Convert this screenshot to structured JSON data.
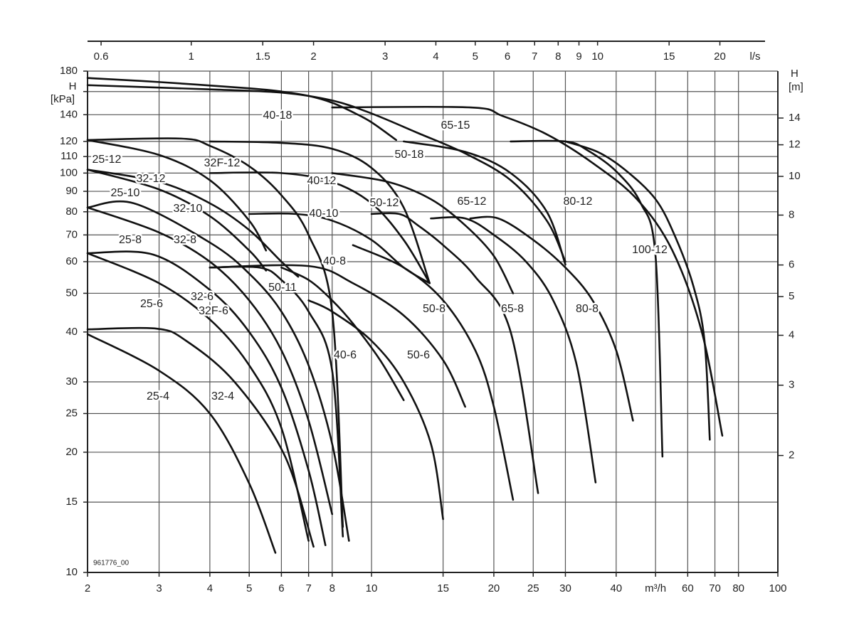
{
  "chart_data": {
    "type": "line",
    "log_x": true,
    "log_y": true,
    "grid": true,
    "color": "#111111",
    "xlim": [
      2,
      100
    ],
    "xticks": [
      2,
      3,
      4,
      5,
      6,
      7,
      8,
      10,
      15,
      20,
      25,
      30,
      40,
      {
        "value": 50,
        "label": "m³/h"
      },
      60,
      70,
      80,
      100
    ],
    "ylim": [
      10,
      180
    ],
    "yticks": [
      10,
      15,
      20,
      25,
      30,
      40,
      50,
      60,
      70,
      80,
      90,
      100,
      110,
      120,
      140,
      {
        "value": 160,
        "label": null
      },
      180
    ],
    "y_label": "H",
    "y_unit": "[kPa]",
    "x2lim": [
      0.5556,
      27.78
    ],
    "x2ticks": [
      0.6,
      1,
      1.5,
      2,
      3,
      4,
      5,
      6,
      7,
      8,
      9,
      10,
      15,
      20
    ],
    "x2_unit": "l/s",
    "y2lim": [
      1.019,
      18.35
    ],
    "y2ticks": [
      2,
      3,
      4,
      5,
      6,
      8,
      10,
      12,
      14
    ],
    "y2_label": "H",
    "y2_unit": "[m]",
    "annotation": "961776_00",
    "series": [
      {
        "name": "25-4",
        "x": [
          2,
          3,
          4,
          5,
          5.8
        ],
        "values": [
          39.5,
          32,
          25,
          16.7,
          11.2
        ]
      },
      {
        "name": "32-4",
        "x": [
          2,
          2.95,
          3.5,
          4.6,
          6.1,
          7.2
        ],
        "values": [
          40.6,
          40.8,
          38,
          30,
          19.7,
          11.6
        ]
      },
      {
        "name": "25-6",
        "x": [
          2,
          3,
          4,
          5,
          6,
          7
        ],
        "values": [
          63,
          53,
          43,
          33,
          23,
          12
        ]
      },
      {
        "name": "32-6",
        "x": [
          2,
          2.9,
          4,
          5,
          6,
          7,
          7.7
        ],
        "values": [
          63,
          62.5,
          51,
          40,
          29,
          18,
          11.7
        ]
      },
      {
        "name": "32F-6",
        "x": [
          4,
          5.3,
          6,
          7,
          8,
          8.5
        ],
        "values": [
          58,
          58,
          54,
          45,
          32,
          12.3
        ]
      },
      {
        "name": "25-8",
        "x": [
          2,
          3,
          4,
          5,
          6,
          7,
          8
        ],
        "values": [
          82,
          71,
          60,
          48,
          36,
          24,
          14
        ]
      },
      {
        "name": "32-8",
        "x": [
          2,
          2.6,
          4,
          5,
          6,
          7,
          8,
          8.8
        ],
        "values": [
          82,
          84,
          67,
          56,
          45,
          33,
          21,
          12
        ]
      },
      {
        "name": "25-10",
        "x": [
          2,
          3,
          4,
          5,
          5.5
        ],
        "values": [
          102,
          91,
          78,
          64,
          57
        ]
      },
      {
        "name": "32-10",
        "x": [
          2,
          3,
          4,
          5,
          6,
          6.6
        ],
        "values": [
          102,
          95,
          84,
          72,
          60,
          55
        ]
      },
      {
        "name": "25-12",
        "x": [
          2,
          3,
          4,
          5,
          5.5
        ],
        "values": [
          121,
          111,
          96,
          76,
          64
        ]
      },
      {
        "name": "32-12",
        "x": [
          2,
          3.4,
          4,
          5,
          6,
          7,
          8,
          8.5
        ],
        "values": [
          121,
          122,
          117,
          104,
          88,
          70,
          45,
          13
        ]
      },
      {
        "name": "32F-12",
        "x": [
          4,
          6,
          8,
          10,
          12,
          13.9
        ],
        "values": [
          120,
          119,
          115,
          103,
          82,
          53
        ]
      },
      {
        "name": "40-18",
        "x": [
          2,
          3,
          5,
          6,
          7,
          8,
          9,
          10,
          11.5
        ],
        "values": [
          173,
          169,
          163,
          160,
          156,
          150,
          142,
          134,
          121
        ]
      },
      {
        "name": "50-18",
        "x": [
          2,
          4,
          6,
          8,
          10,
          13,
          17,
          22,
          27,
          30
        ],
        "values": [
          166,
          162,
          159,
          152,
          141,
          126,
          112,
          96,
          76,
          60
        ]
      },
      {
        "name": "65-15",
        "x": [
          8,
          17.5,
          21,
          27,
          35,
          45,
          55,
          65,
          73
        ],
        "values": [
          146,
          146,
          139,
          125,
          106,
          86,
          64,
          40,
          22
        ]
      },
      {
        "name": "40-12",
        "x": [
          4,
          6,
          8,
          10,
          12,
          13.9
        ],
        "values": [
          100,
          100,
          95,
          84,
          68,
          53
        ]
      },
      {
        "name": "40-10",
        "x": [
          5,
          6.5,
          8,
          10,
          12,
          13.9
        ],
        "values": [
          79,
          79,
          76,
          68,
          58,
          53
        ]
      },
      {
        "name": "40-8",
        "x": [
          4,
          7,
          9,
          12,
          15,
          17
        ],
        "values": [
          58,
          58.5,
          53,
          44,
          34,
          26
        ]
      },
      {
        "name": "50-11",
        "x": [
          6,
          7,
          8,
          9,
          10.5,
          12
        ],
        "values": [
          58,
          54,
          48,
          42,
          34,
          27
        ]
      },
      {
        "name": "40-6",
        "x": [
          7,
          8,
          10,
          12,
          14,
          15
        ],
        "values": [
          48,
          45,
          38,
          30,
          21,
          13.6
        ]
      },
      {
        "name": "50-12",
        "x": [
          8,
          11,
          14,
          17,
          20,
          22.3
        ],
        "values": [
          100,
          95,
          86,
          74,
          62,
          50
        ]
      },
      {
        "name": "50-8",
        "x": [
          10,
          11.7,
          13,
          15,
          18,
          22,
          25.7
        ],
        "values": [
          79,
          79,
          74,
          66,
          55,
          40,
          15.8
        ]
      },
      {
        "name": "50-6",
        "x": [
          9,
          12,
          15,
          18,
          20,
          22.3
        ],
        "values": [
          66,
          58,
          48,
          36,
          26,
          15.2
        ]
      },
      {
        "name": "65-12",
        "x": [
          12,
          17,
          22,
          27,
          30
        ],
        "values": [
          120,
          113,
          100,
          80,
          59
        ]
      },
      {
        "name": "65-8",
        "x": [
          14,
          17,
          20,
          24,
          28,
          32,
          35.6
        ],
        "values": [
          77,
          77,
          70,
          60,
          48,
          33,
          16.8
        ]
      },
      {
        "name": "80-12",
        "x": [
          22,
          30,
          34,
          40,
          46,
          50,
          52
        ],
        "values": [
          120,
          120,
          114,
          101,
          84,
          62,
          19.5
        ]
      },
      {
        "name": "80-8",
        "x": [
          17.5,
          20.5,
          25,
          30,
          35,
          40,
          44
        ],
        "values": [
          77,
          77,
          68,
          58,
          48,
          36,
          24
        ]
      },
      {
        "name": "100-12",
        "x": [
          30,
          36,
          42,
          50,
          56,
          62,
          66,
          68
        ],
        "values": [
          120,
          113,
          102,
          86,
          69,
          52,
          38,
          21.5
        ]
      }
    ]
  }
}
